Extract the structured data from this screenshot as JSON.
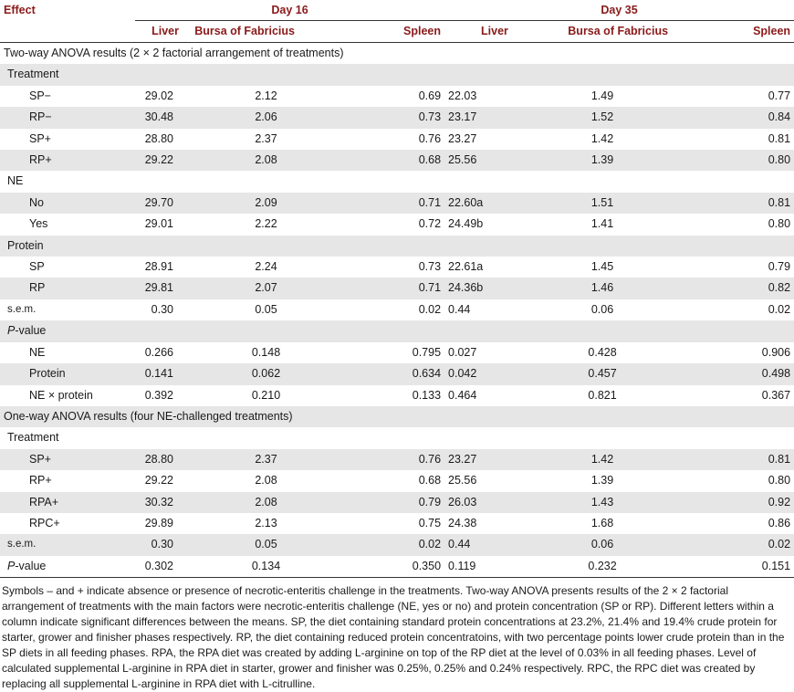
{
  "header": {
    "effect": "Effect",
    "day16": "Day 16",
    "day35": "Day 35",
    "liver": "Liver",
    "bursa": "Bursa of Fabricius",
    "spleen": "Spleen"
  },
  "rows": [
    {
      "type": "section",
      "label": "Two-way ANOVA results (2 × 2 factorial arrangement of treatments)",
      "shade": false
    },
    {
      "type": "group",
      "label": "Treatment",
      "shade": true
    },
    {
      "type": "data",
      "label": "SP−",
      "indent": 2,
      "shade": false,
      "v": [
        "29.02",
        "2.12",
        "0.69",
        "22.03",
        "1.49",
        "0.77"
      ]
    },
    {
      "type": "data",
      "label": "RP−",
      "indent": 2,
      "shade": true,
      "v": [
        "30.48",
        "2.06",
        "0.73",
        "23.17",
        "1.52",
        "0.84"
      ]
    },
    {
      "type": "data",
      "label": "SP+",
      "indent": 2,
      "shade": false,
      "v": [
        "28.80",
        "2.37",
        "0.76",
        "23.27",
        "1.42",
        "0.81"
      ]
    },
    {
      "type": "data",
      "label": "RP+",
      "indent": 2,
      "shade": true,
      "v": [
        "29.22",
        "2.08",
        "0.68",
        "25.56",
        "1.39",
        "0.80"
      ]
    },
    {
      "type": "group",
      "label": "NE",
      "shade": false
    },
    {
      "type": "data",
      "label": "No",
      "indent": 2,
      "shade": true,
      "v": [
        "29.70",
        "2.09",
        "0.71",
        "22.60a",
        "1.51",
        "0.81"
      ]
    },
    {
      "type": "data",
      "label": "Yes",
      "indent": 2,
      "shade": false,
      "v": [
        "29.01",
        "2.22",
        "0.72",
        "24.49b",
        "1.41",
        "0.80"
      ]
    },
    {
      "type": "group",
      "label": "Protein",
      "shade": true
    },
    {
      "type": "data",
      "label": "SP",
      "indent": 2,
      "shade": false,
      "v": [
        "28.91",
        "2.24",
        "0.73",
        "22.61a",
        "1.45",
        "0.79"
      ]
    },
    {
      "type": "data",
      "label": "RP",
      "indent": 2,
      "shade": true,
      "v": [
        "29.81",
        "2.07",
        "0.71",
        "24.36b",
        "1.46",
        "0.82"
      ]
    },
    {
      "type": "data",
      "label": "s.e.m.",
      "indent": 1,
      "shade": false,
      "small": true,
      "v": [
        "0.30",
        "0.05",
        "0.02",
        "0.44",
        "0.06",
        "0.02"
      ]
    },
    {
      "type": "group",
      "label": "-value",
      "italic": "P",
      "shade": true
    },
    {
      "type": "data",
      "label": "NE",
      "indent": 2,
      "shade": false,
      "v": [
        "0.266",
        "0.148",
        "0.795",
        "0.027",
        "0.428",
        "0.906"
      ]
    },
    {
      "type": "data",
      "label": "Protein",
      "indent": 2,
      "shade": true,
      "v": [
        "0.141",
        "0.062",
        "0.634",
        "0.042",
        "0.457",
        "0.498"
      ]
    },
    {
      "type": "data",
      "label": "NE × protein",
      "indent": 2,
      "shade": false,
      "v": [
        "0.392",
        "0.210",
        "0.133",
        "0.464",
        "0.821",
        "0.367"
      ]
    },
    {
      "type": "section",
      "label": "One-way ANOVA results (four NE-challenged treatments)",
      "shade": true
    },
    {
      "type": "group",
      "label": "Treatment",
      "shade": false
    },
    {
      "type": "data",
      "label": "SP+",
      "indent": 2,
      "shade": true,
      "v": [
        "28.80",
        "2.37",
        "0.76",
        "23.27",
        "1.42",
        "0.81"
      ]
    },
    {
      "type": "data",
      "label": "RP+",
      "indent": 2,
      "shade": false,
      "v": [
        "29.22",
        "2.08",
        "0.68",
        "25.56",
        "1.39",
        "0.80"
      ]
    },
    {
      "type": "data",
      "label": "RPA+",
      "indent": 2,
      "shade": true,
      "v": [
        "30.32",
        "2.08",
        "0.79",
        "26.03",
        "1.43",
        "0.92"
      ]
    },
    {
      "type": "data",
      "label": "RPC+",
      "indent": 2,
      "shade": false,
      "v": [
        "29.89",
        "2.13",
        "0.75",
        "24.38",
        "1.68",
        "0.86"
      ]
    },
    {
      "type": "data",
      "label": "s.e.m.",
      "indent": 1,
      "shade": true,
      "small": true,
      "v": [
        "0.30",
        "0.05",
        "0.02",
        "0.44",
        "0.06",
        "0.02"
      ]
    },
    {
      "type": "data",
      "label": "-value",
      "italic": "P",
      "indent": 1,
      "shade": false,
      "v": [
        "0.302",
        "0.134",
        "0.350",
        "0.119",
        "0.232",
        "0.151"
      ]
    }
  ],
  "footnote": "Symbols – and + indicate absence or presence of necrotic-enteritis challenge in the treatments. Two-way ANOVA presents results of the 2 × 2 factorial arrangement of treatments with the main factors were necrotic-enteritis challenge (NE, yes or no) and protein concentration (SP or RP). Different letters within a column indicate significant differences between the means. SP, the diet containing standard protein concentrations at 23.2%, 21.4% and 19.4% crude protein for starter, grower and finisher phases respectively. RP, the diet containing reduced protein concentratoins, with two percentage points lower crude protein than in the SP diets in all feeding phases. RPA, the RPA diet was created by adding L-arginine on top of the RP diet at the level of 0.03% in all feeding phases. Level of calculated supplemental L-arginine in RPA diet in starter, grower and finisher was 0.25%, 0.25% and 0.24% respectively. RPC, the RPC diet was created by replacing all supplemental L-arginine in RPA diet with L-citrulline."
}
